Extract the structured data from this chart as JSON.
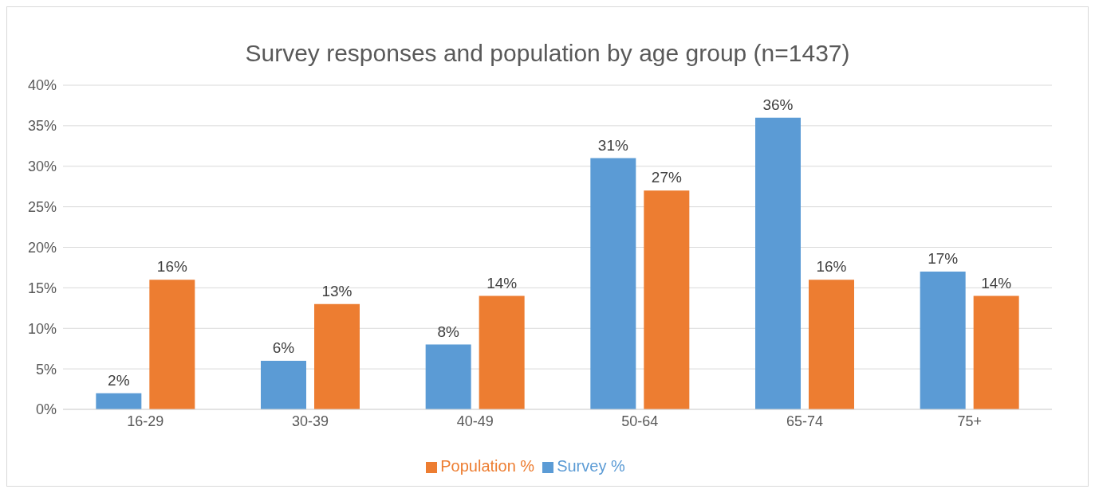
{
  "chart_data": {
    "type": "bar",
    "title": "Survey responses and population by age group (n=1437)",
    "categories": [
      "16-29",
      "30-39",
      "40-49",
      "50-64",
      "65-74",
      "75+"
    ],
    "series": [
      {
        "name": "Survey %",
        "color": "#5b9bd5",
        "values": [
          2,
          6,
          8,
          31,
          36,
          17
        ],
        "value_labels": [
          "2%",
          "6%",
          "8%",
          "31%",
          "36%",
          "17%"
        ]
      },
      {
        "name": "Population %",
        "color": "#ed7d31",
        "values": [
          16,
          13,
          14,
          27,
          16,
          14
        ],
        "value_labels": [
          "16%",
          "13%",
          "14%",
          "27%",
          "16%",
          "14%"
        ]
      }
    ],
    "ylim": [
      0,
      40
    ],
    "yticks": [
      {
        "value": 0,
        "label": "0%"
      },
      {
        "value": 5,
        "label": "5%"
      },
      {
        "value": 10,
        "label": "10%"
      },
      {
        "value": 15,
        "label": "15%"
      },
      {
        "value": 20,
        "label": "20%"
      },
      {
        "value": 25,
        "label": "25%"
      },
      {
        "value": 30,
        "label": "30%"
      },
      {
        "value": 35,
        "label": "35%"
      },
      {
        "value": 40,
        "label": "40%"
      }
    ],
    "grid": "y",
    "legend": "bottom"
  }
}
